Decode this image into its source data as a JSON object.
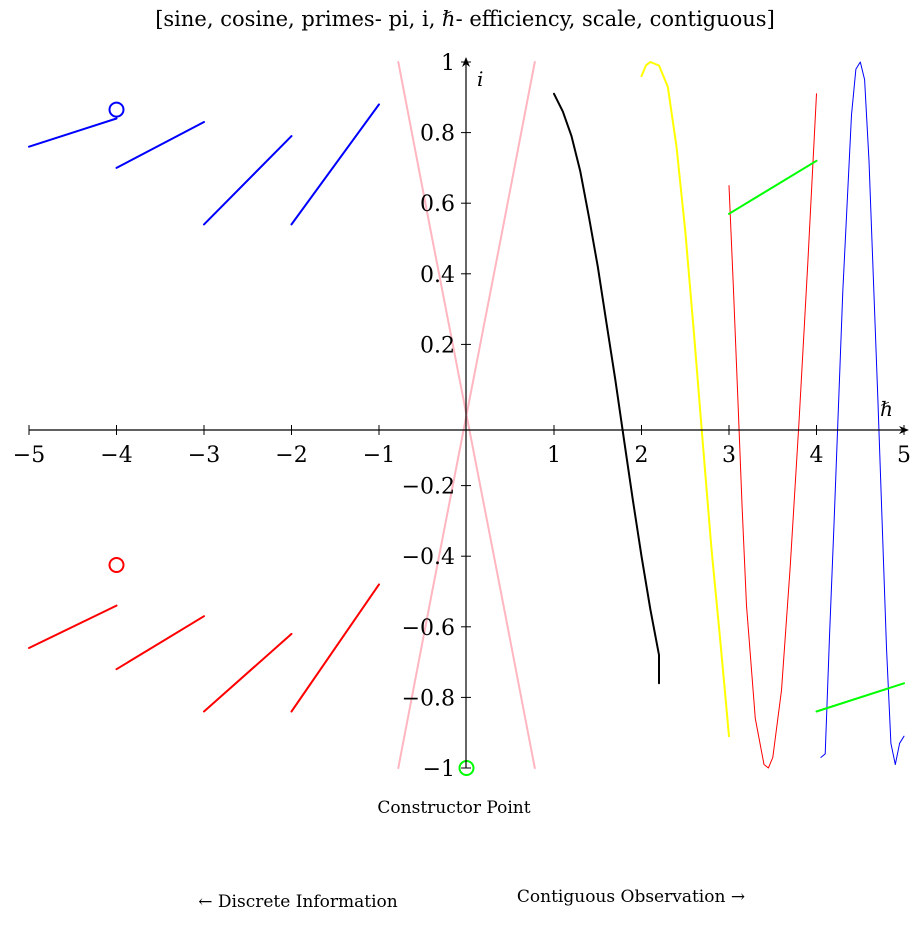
{
  "chart_data": {
    "type": "line",
    "title": "[sine, cosine, primes- pi, i, ℏ- efficiency, scale, contiguous]",
    "xlabel": "ℏ",
    "ylabel": "i",
    "xlim": [
      -5,
      5
    ],
    "ylim": [
      -1,
      1
    ],
    "x_ticks": [
      -5,
      -4,
      -3,
      -2,
      -1,
      1,
      2,
      3,
      4,
      5
    ],
    "x_tick_labels": [
      "−5",
      "−4",
      "−3",
      "−2",
      "−1",
      "1",
      "2",
      "3",
      "4",
      "5"
    ],
    "y_ticks": [
      1,
      0.8,
      0.6,
      0.4,
      0.2,
      -0.2,
      -0.4,
      -0.6,
      -0.8,
      -1
    ],
    "y_tick_labels": [
      "1",
      "0.8",
      "0.6",
      "0.4",
      "0.2",
      "−0.2",
      "−0.4",
      "−0.6",
      "−0.8",
      "−1"
    ],
    "grid": false,
    "series": [
      {
        "color": "#0000ff",
        "kind": "segments",
        "width": 2,
        "segments": [
          [
            [
              -5,
              0.76
            ],
            [
              -4,
              0.84
            ]
          ],
          [
            [
              -4,
              0.7
            ],
            [
              -3,
              0.83
            ]
          ],
          [
            [
              -3,
              0.54
            ],
            [
              -2,
              0.79
            ]
          ],
          [
            [
              -2,
              0.54
            ],
            [
              -1,
              0.88
            ]
          ]
        ]
      },
      {
        "color": "#ff0000",
        "kind": "segments",
        "width": 2,
        "segments": [
          [
            [
              -5,
              -0.66
            ],
            [
              -4,
              -0.54
            ]
          ],
          [
            [
              -4,
              -0.72
            ],
            [
              -3,
              -0.57
            ]
          ],
          [
            [
              -3,
              -0.84
            ],
            [
              -2,
              -0.62
            ]
          ],
          [
            [
              -2,
              -0.84
            ],
            [
              -1,
              -0.48
            ]
          ]
        ]
      },
      {
        "color": "#ffb6c1",
        "kind": "curve",
        "width": 2,
        "points": [
          [
            -0.78,
            1.0
          ],
          [
            -0.4,
            0.51
          ],
          [
            0,
            0
          ],
          [
            0.4,
            -0.51
          ],
          [
            0.78,
            -1.0
          ]
        ]
      },
      {
        "color": "#ffb6c1",
        "kind": "curve",
        "width": 2,
        "points": [
          [
            -0.78,
            -1.0
          ],
          [
            -0.4,
            -0.51
          ],
          [
            0,
            0
          ],
          [
            0.4,
            0.51
          ],
          [
            0.78,
            1.0
          ]
        ]
      },
      {
        "color": "#000000",
        "kind": "curve",
        "width": 2,
        "points": [
          [
            1.0,
            0.91
          ],
          [
            1.1,
            0.86
          ],
          [
            1.2,
            0.79
          ],
          [
            1.3,
            0.69
          ],
          [
            1.4,
            0.56
          ],
          [
            1.5,
            0.42
          ],
          [
            1.6,
            0.26
          ],
          [
            1.7,
            0.1
          ],
          [
            1.8,
            -0.07
          ],
          [
            1.9,
            -0.24
          ],
          [
            2.0,
            -0.4
          ],
          [
            2.1,
            -0.55
          ],
          [
            2.2,
            -0.68
          ],
          [
            2.2,
            -0.76
          ]
        ]
      },
      {
        "color": "#ffff00",
        "kind": "curve",
        "width": 2,
        "points": [
          [
            2.0,
            0.96
          ],
          [
            2.05,
            0.99
          ],
          [
            2.1,
            1.0
          ],
          [
            2.2,
            0.99
          ],
          [
            2.3,
            0.93
          ],
          [
            2.4,
            0.76
          ],
          [
            2.5,
            0.52
          ],
          [
            2.6,
            0.23
          ],
          [
            2.7,
            -0.08
          ],
          [
            2.8,
            -0.38
          ],
          [
            2.9,
            -0.64
          ],
          [
            3.0,
            -0.91
          ]
        ]
      },
      {
        "color": "#ff0000",
        "kind": "curve",
        "width": 1,
        "points": [
          [
            3.0,
            0.65
          ],
          [
            3.05,
            0.36
          ],
          [
            3.1,
            0.05
          ],
          [
            3.15,
            -0.26
          ],
          [
            3.2,
            -0.54
          ],
          [
            3.3,
            -0.86
          ],
          [
            3.4,
            -0.99
          ],
          [
            3.45,
            -1.0
          ],
          [
            3.5,
            -0.97
          ],
          [
            3.6,
            -0.78
          ],
          [
            3.7,
            -0.43
          ],
          [
            3.8,
            -0.02
          ],
          [
            3.9,
            0.43
          ],
          [
            4.0,
            0.91
          ]
        ]
      },
      {
        "color": "#0000ff",
        "kind": "curve",
        "width": 1,
        "points": [
          [
            4.05,
            -0.97
          ],
          [
            4.1,
            -0.96
          ],
          [
            4.15,
            -0.62
          ],
          [
            4.2,
            -0.31
          ],
          [
            4.3,
            0.35
          ],
          [
            4.4,
            0.85
          ],
          [
            4.45,
            0.98
          ],
          [
            4.5,
            1.0
          ],
          [
            4.55,
            0.95
          ],
          [
            4.6,
            0.72
          ],
          [
            4.7,
            0.05
          ],
          [
            4.8,
            -0.66
          ],
          [
            4.85,
            -0.93
          ],
          [
            4.9,
            -0.99
          ],
          [
            4.95,
            -0.93
          ],
          [
            5.0,
            -0.91
          ]
        ]
      },
      {
        "color": "#00ff00",
        "kind": "segments",
        "width": 2,
        "segments": [
          [
            [
              3.0,
              0.57
            ],
            [
              4.0,
              0.72
            ]
          ],
          [
            [
              4.0,
              -0.84
            ],
            [
              5.0,
              -0.76
            ]
          ]
        ]
      }
    ],
    "markers": [
      {
        "color": "#0000ff",
        "x": -4,
        "y": 0.865
      },
      {
        "color": "#ff0000",
        "x": -4,
        "y": -0.425
      },
      {
        "color": "#00ff00",
        "x": 0,
        "y": -1.0
      }
    ],
    "annotations": {
      "constructor_point": "Constructor Point",
      "left_note": "← Discrete Information",
      "right_note": "Contiguous Observation →"
    }
  }
}
